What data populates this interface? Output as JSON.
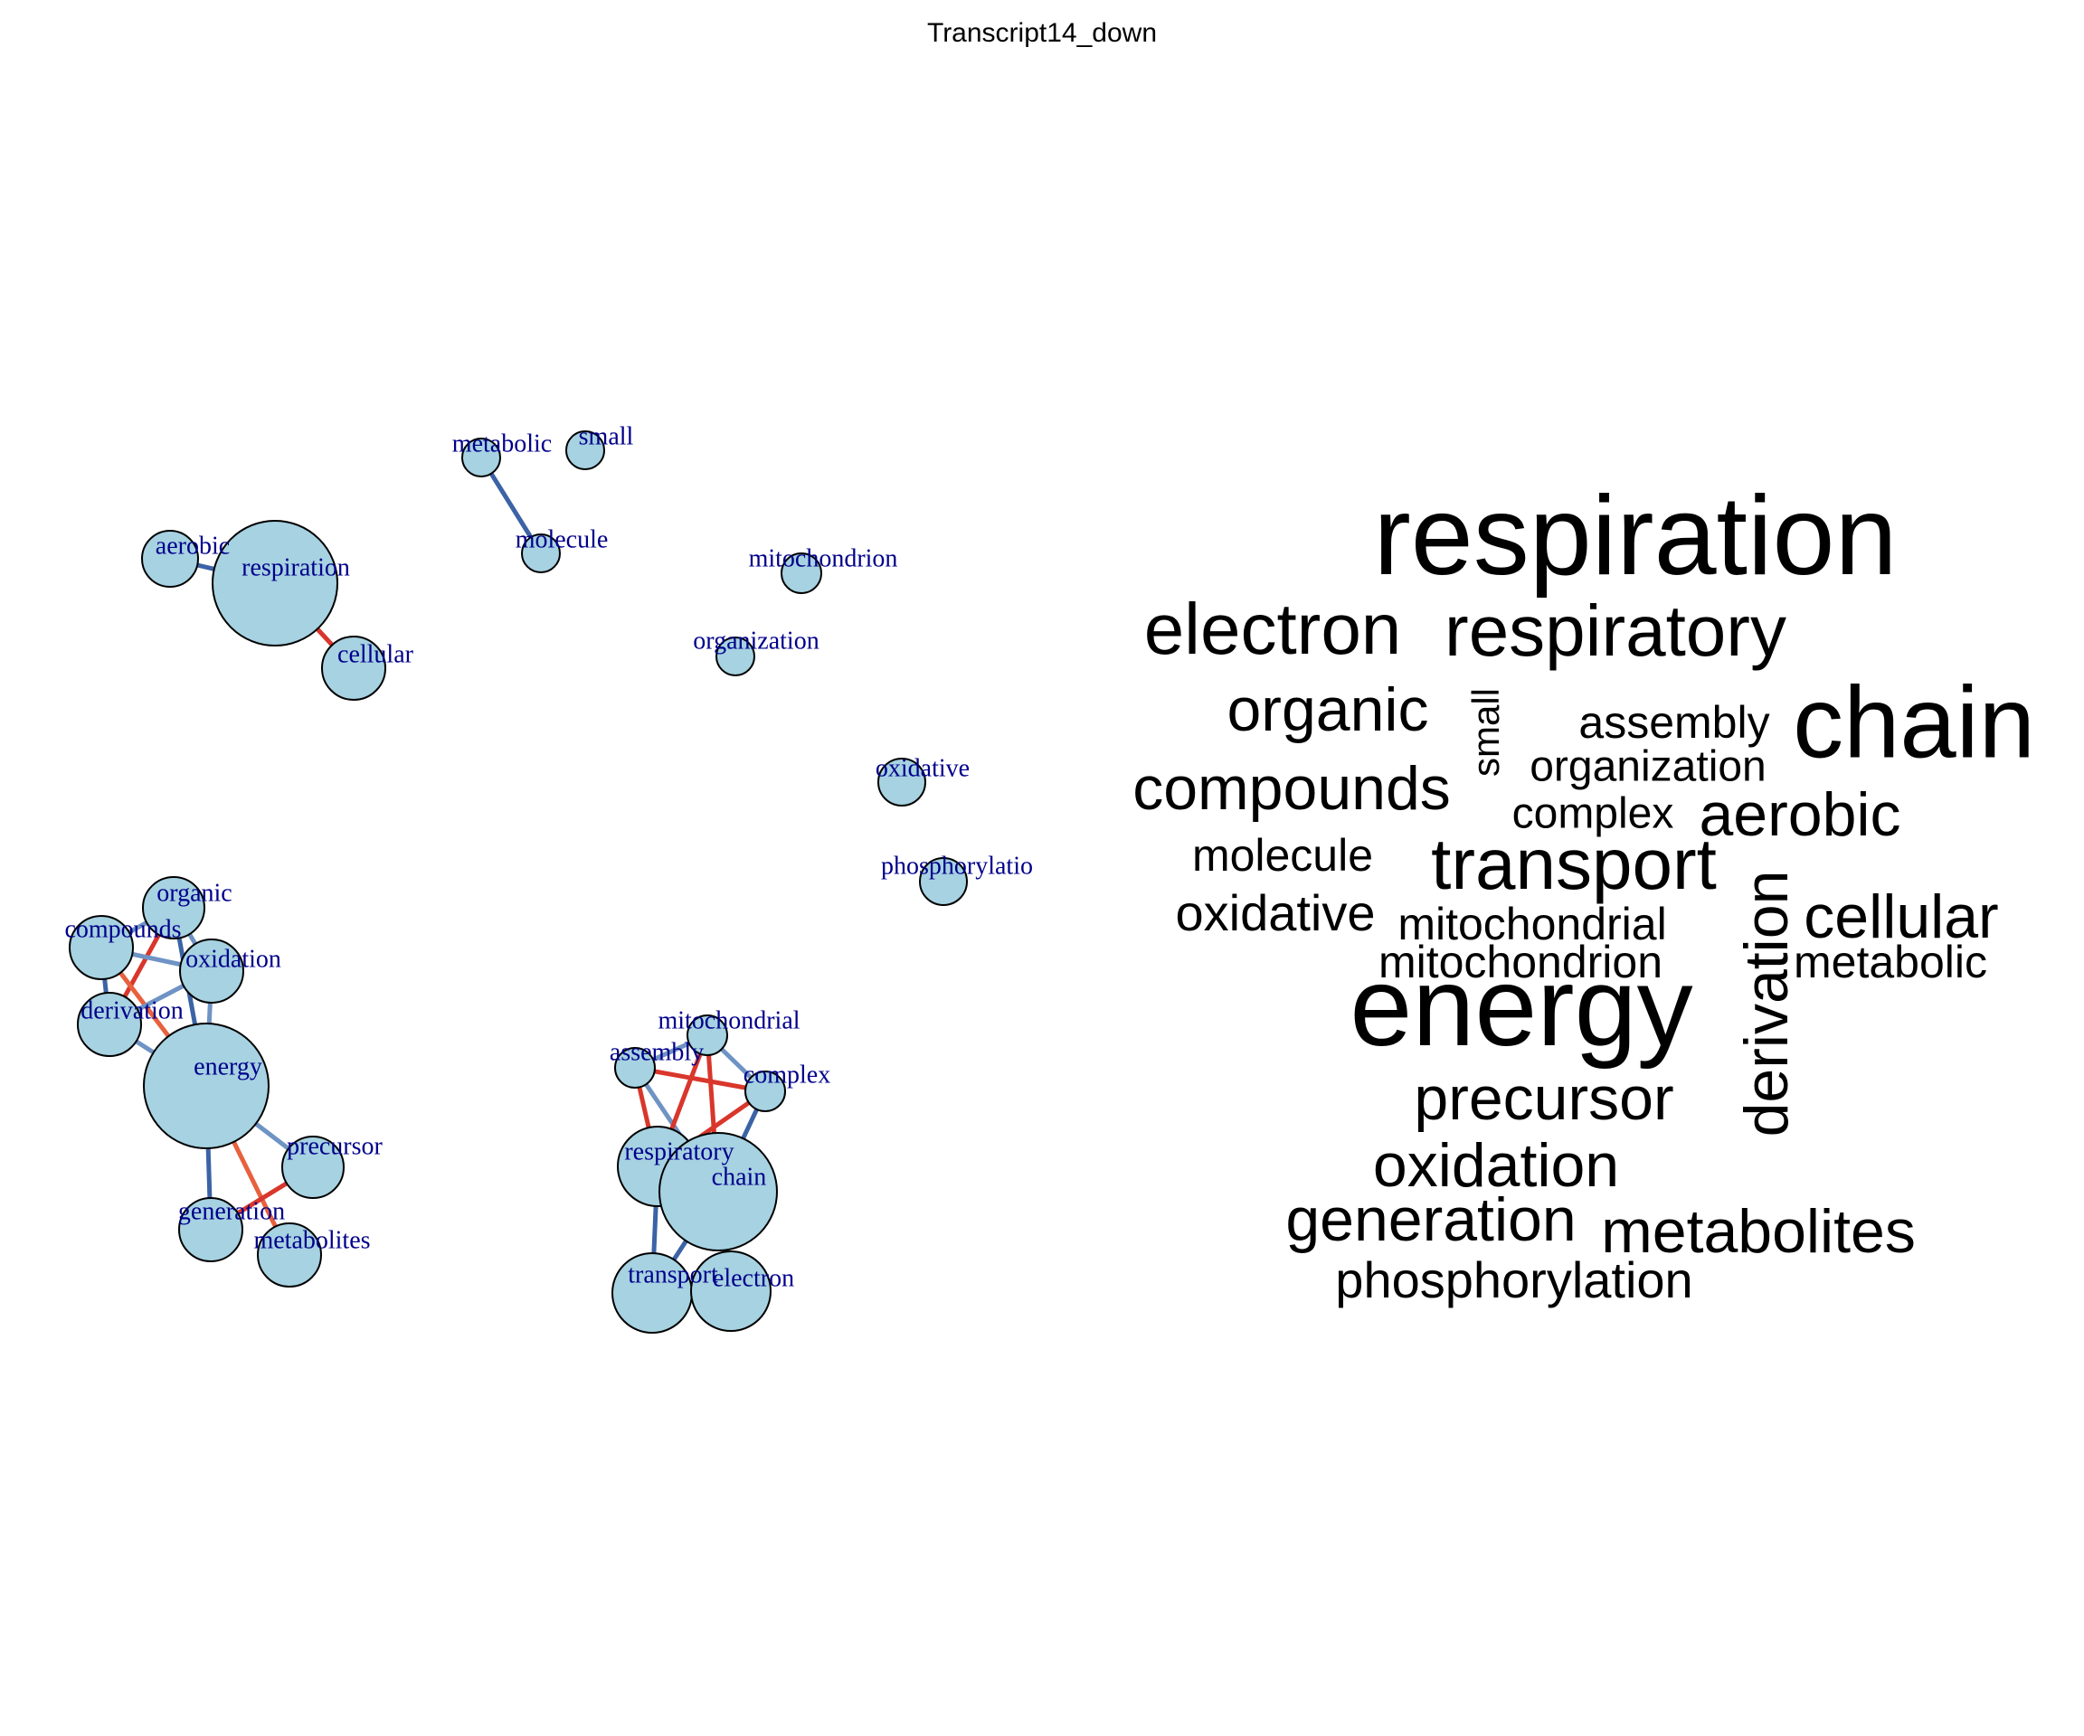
{
  "title": "Transcript14_down",
  "network": {
    "node_fill": "#a6d2e1",
    "node_stroke": "#000000",
    "label_color": "#00008b",
    "edge_colors": {
      "blue": "#3b63a6",
      "lightblue": "#6f93c4",
      "red": "#d9362c",
      "orange": "#e8613f"
    },
    "nodes": [
      {
        "id": "respiration",
        "label": "respiration"
      },
      {
        "id": "aerobic",
        "label": "aerobic"
      },
      {
        "id": "cellular",
        "label": "cellular"
      },
      {
        "id": "metabolic",
        "label": "metabolic"
      },
      {
        "id": "small",
        "label": "small"
      },
      {
        "id": "molecule",
        "label": "molecule"
      },
      {
        "id": "mitochondrion",
        "label": "mitochondrion"
      },
      {
        "id": "organization",
        "label": "organization"
      },
      {
        "id": "oxidative",
        "label": "oxidative"
      },
      {
        "id": "phosphorylation",
        "label": "phosphorylatio"
      },
      {
        "id": "organic",
        "label": "organic"
      },
      {
        "id": "compounds",
        "label": "compounds"
      },
      {
        "id": "oxidation",
        "label": "oxidation"
      },
      {
        "id": "derivation",
        "label": "derivation"
      },
      {
        "id": "energy",
        "label": "energy"
      },
      {
        "id": "precursor",
        "label": "precursor"
      },
      {
        "id": "generation",
        "label": "generation"
      },
      {
        "id": "metabolites",
        "label": "metabolites"
      },
      {
        "id": "mitochondrial",
        "label": "mitochondrial"
      },
      {
        "id": "assembly",
        "label": "assembly"
      },
      {
        "id": "complex",
        "label": "complex"
      },
      {
        "id": "respiratory",
        "label": "respiratory"
      },
      {
        "id": "chain",
        "label": "chain"
      },
      {
        "id": "transport",
        "label": "transport"
      },
      {
        "id": "electron",
        "label": "electron"
      }
    ],
    "edges": [
      {
        "source": "aerobic",
        "target": "respiration",
        "color": "blue"
      },
      {
        "source": "respiration",
        "target": "cellular",
        "color": "red"
      },
      {
        "source": "metabolic",
        "target": "molecule",
        "color": "blue"
      },
      {
        "source": "organic",
        "target": "compounds",
        "color": "lightblue"
      },
      {
        "source": "organic",
        "target": "derivation",
        "color": "red"
      },
      {
        "source": "organic",
        "target": "oxidation",
        "color": "lightblue"
      },
      {
        "source": "organic",
        "target": "energy",
        "color": "blue"
      },
      {
        "source": "compounds",
        "target": "oxidation",
        "color": "lightblue"
      },
      {
        "source": "compounds",
        "target": "derivation",
        "color": "blue"
      },
      {
        "source": "compounds",
        "target": "energy",
        "color": "orange"
      },
      {
        "source": "oxidation",
        "target": "derivation",
        "color": "lightblue"
      },
      {
        "source": "oxidation",
        "target": "energy",
        "color": "lightblue"
      },
      {
        "source": "derivation",
        "target": "energy",
        "color": "lightblue"
      },
      {
        "source": "energy",
        "target": "precursor",
        "color": "lightblue"
      },
      {
        "source": "energy",
        "target": "generation",
        "color": "blue"
      },
      {
        "source": "energy",
        "target": "metabolites",
        "color": "orange"
      },
      {
        "source": "precursor",
        "target": "generation",
        "color": "red"
      },
      {
        "source": "assembly",
        "target": "mitochondrial",
        "color": "lightblue"
      },
      {
        "source": "assembly",
        "target": "complex",
        "color": "red"
      },
      {
        "source": "assembly",
        "target": "respiratory",
        "color": "red"
      },
      {
        "source": "assembly",
        "target": "chain",
        "color": "lightblue"
      },
      {
        "source": "mitochondrial",
        "target": "complex",
        "color": "lightblue"
      },
      {
        "source": "mitochondrial",
        "target": "respiratory",
        "color": "red"
      },
      {
        "source": "mitochondrial",
        "target": "chain",
        "color": "red"
      },
      {
        "source": "complex",
        "target": "respiratory",
        "color": "red"
      },
      {
        "source": "complex",
        "target": "chain",
        "color": "blue"
      },
      {
        "source": "respiratory",
        "target": "transport",
        "color": "blue"
      },
      {
        "source": "respiratory",
        "target": "chain",
        "color": "blue"
      },
      {
        "source": "chain",
        "target": "transport",
        "color": "blue"
      },
      {
        "source": "chain",
        "target": "electron",
        "color": "blue"
      },
      {
        "source": "transport",
        "target": "electron",
        "color": "blue"
      }
    ]
  },
  "wordcloud": {
    "words": [
      {
        "text": "respiration",
        "rotated": false
      },
      {
        "text": "electron",
        "rotated": false
      },
      {
        "text": "respiratory",
        "rotated": false
      },
      {
        "text": "organic",
        "rotated": false
      },
      {
        "text": "small",
        "rotated": true
      },
      {
        "text": "assembly",
        "rotated": false
      },
      {
        "text": "chain",
        "rotated": false
      },
      {
        "text": "compounds",
        "rotated": false
      },
      {
        "text": "organization",
        "rotated": false
      },
      {
        "text": "complex",
        "rotated": false
      },
      {
        "text": "aerobic",
        "rotated": false
      },
      {
        "text": "molecule",
        "rotated": false
      },
      {
        "text": "transport",
        "rotated": false
      },
      {
        "text": "oxidative",
        "rotated": false
      },
      {
        "text": "mitochondrial",
        "rotated": false
      },
      {
        "text": "cellular",
        "rotated": false
      },
      {
        "text": "mitochondrion",
        "rotated": false
      },
      {
        "text": "metabolic",
        "rotated": false
      },
      {
        "text": "derivation",
        "rotated": true
      },
      {
        "text": "energy",
        "rotated": false
      },
      {
        "text": "precursor",
        "rotated": false
      },
      {
        "text": "oxidation",
        "rotated": false
      },
      {
        "text": "generation",
        "rotated": false
      },
      {
        "text": "metabolites",
        "rotated": false
      },
      {
        "text": "phosphorylation",
        "rotated": false
      }
    ]
  }
}
